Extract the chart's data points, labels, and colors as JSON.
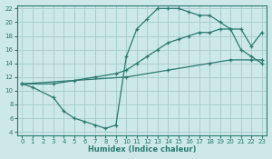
{
  "bg_color": "#cde8e8",
  "line_color": "#2a7a70",
  "grid_color": "#aacece",
  "xlabel": "Humidex (Indice chaleur)",
  "xlim": [
    -0.5,
    23.5
  ],
  "ylim": [
    3.5,
    22.5
  ],
  "yticks": [
    4,
    6,
    8,
    10,
    12,
    14,
    16,
    18,
    20,
    22
  ],
  "xticks": [
    0,
    1,
    2,
    3,
    4,
    5,
    6,
    7,
    8,
    9,
    10,
    11,
    12,
    13,
    14,
    15,
    16,
    17,
    18,
    19,
    20,
    21,
    22,
    23
  ],
  "curve1_x": [
    0,
    1,
    3,
    4,
    5,
    6,
    7,
    8,
    9,
    10,
    11,
    12,
    13,
    14,
    15,
    16,
    17,
    18,
    19,
    20,
    21,
    22,
    23
  ],
  "curve1_y": [
    11,
    10.5,
    9,
    7,
    6,
    5.5,
    5,
    4.5,
    5,
    15,
    19,
    20.5,
    22,
    22,
    22,
    21.5,
    21,
    21,
    20,
    19,
    16,
    15,
    14
  ],
  "curve2_x": [
    0,
    10,
    14,
    18,
    20,
    22,
    23
  ],
  "curve2_y": [
    11,
    12.0,
    13.0,
    14.0,
    14.5,
    14.5,
    14.5
  ],
  "curve3_x": [
    0,
    3,
    5,
    7,
    9,
    10,
    11,
    12,
    13,
    14,
    15,
    16,
    17,
    18,
    19,
    20,
    21,
    22,
    23
  ],
  "curve3_y": [
    11,
    11.0,
    11.5,
    12.0,
    12.5,
    13.0,
    14.0,
    15.0,
    16.0,
    17.0,
    17.5,
    18.0,
    18.5,
    18.5,
    19.0,
    19.0,
    19.0,
    16.5,
    18.5
  ]
}
